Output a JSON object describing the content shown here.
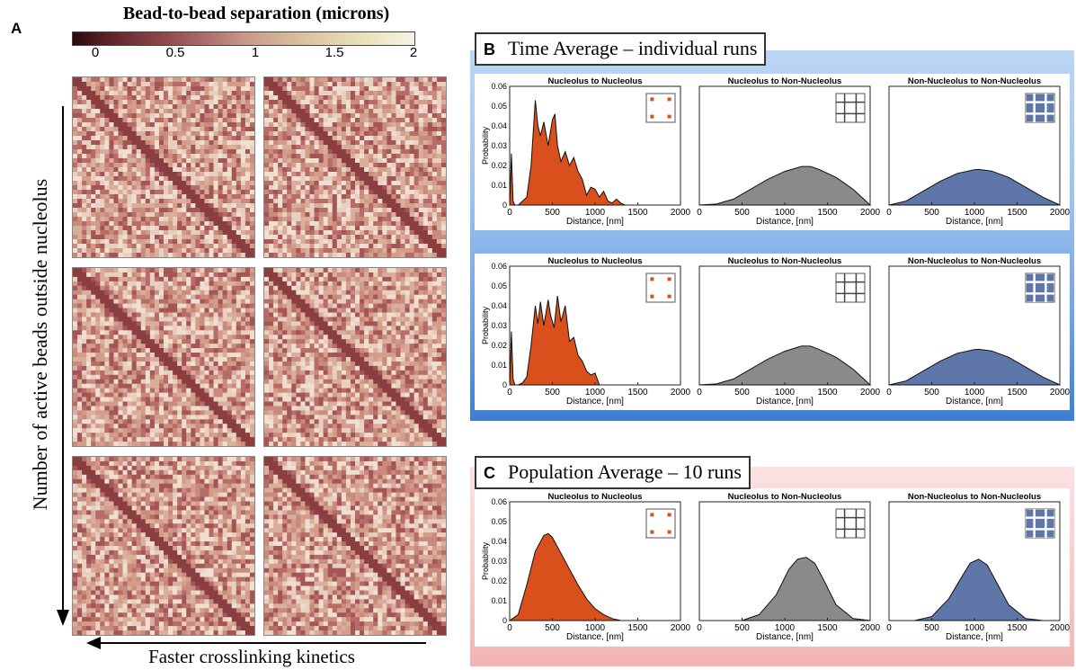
{
  "panel_a": {
    "letter": "A",
    "colorbar": {
      "title": "Bead-to-bead separation (microns)",
      "ticks": [
        "0",
        "0.5",
        "1",
        "1.5",
        "2"
      ]
    },
    "vertical_label": "Number of active beads outside nucleolus",
    "horizontal_label": "Faster crosslinking kinetics"
  },
  "panel_b": {
    "letter": "B",
    "title": "Time Average – individual runs"
  },
  "panel_c": {
    "letter": "C",
    "title": "Population Average – 10 runs"
  },
  "plot_titles": [
    "Nucleolus to Nucleolus",
    "Nucleolus to Non-Nucleolus",
    "Non-Nucleolus to Non-Nucleolus"
  ],
  "axis": {
    "xlabel": "Distance, [nm]",
    "ylabel": "Probability",
    "xticks": [
      "0",
      "500",
      "1000",
      "1500",
      "2000"
    ],
    "yticks": [
      "0",
      "0.01",
      "0.02",
      "0.03",
      "0.04",
      "0.05",
      "0.06"
    ]
  },
  "colors": {
    "orange": "#d9501c",
    "gray": "#8a8a8a",
    "blue": "#5e76a8",
    "panel_b_frame": "#3d7fd0",
    "panel_c_frame": "#f2b4b4"
  },
  "chart_data": [
    {
      "type": "area",
      "panel": "B",
      "row": 1,
      "title": "Nucleolus to Nucleolus",
      "xlabel": "Distance, [nm]",
      "ylabel": "Probability",
      "xlim": [
        0,
        2000
      ],
      "ylim": [
        0,
        0.06
      ],
      "x": [
        0,
        20,
        40,
        60,
        80,
        100,
        150,
        200,
        250,
        300,
        330,
        360,
        400,
        450,
        500,
        530,
        560,
        600,
        650,
        700,
        750,
        800,
        850,
        900,
        950,
        1000,
        1050,
        1100,
        1150,
        1200,
        1250,
        1300,
        1350
      ],
      "y": [
        0,
        0.026,
        0.002,
        0,
        0,
        0,
        0.002,
        0.004,
        0.02,
        0.053,
        0.04,
        0.035,
        0.042,
        0.03,
        0.043,
        0.046,
        0.03,
        0.022,
        0.027,
        0.02,
        0.024,
        0.017,
        0.013,
        0.005,
        0.009,
        0.008,
        0.004,
        0.007,
        0.002,
        0.001,
        0.003,
        0.001,
        0
      ]
    },
    {
      "type": "area",
      "panel": "B",
      "row": 1,
      "title": "Nucleolus to Non-Nucleolus",
      "xlabel": "Distance, [nm]",
      "xlim": [
        0,
        2000
      ],
      "ylim": [
        0,
        0.06
      ],
      "x": [
        0,
        200,
        400,
        600,
        800,
        1000,
        1200,
        1300,
        1400,
        1600,
        1800,
        1950,
        2000
      ],
      "y": [
        0,
        0.0005,
        0.003,
        0.008,
        0.013,
        0.017,
        0.0195,
        0.0195,
        0.018,
        0.014,
        0.008,
        0.002,
        0
      ]
    },
    {
      "type": "area",
      "panel": "B",
      "row": 1,
      "title": "Non-Nucleolus to Non-Nucleolus",
      "xlabel": "Distance, [nm]",
      "xlim": [
        0,
        2000
      ],
      "ylim": [
        0,
        0.06
      ],
      "x": [
        0,
        200,
        400,
        600,
        800,
        1000,
        1050,
        1200,
        1400,
        1600,
        1800,
        2000
      ],
      "y": [
        0,
        0.002,
        0.007,
        0.012,
        0.016,
        0.0178,
        0.018,
        0.0172,
        0.014,
        0.009,
        0.004,
        0
      ]
    },
    {
      "type": "area",
      "panel": "B",
      "row": 2,
      "title": "Nucleolus to Nucleolus",
      "xlabel": "Distance, [nm]",
      "ylabel": "Probability",
      "xlim": [
        0,
        2000
      ],
      "ylim": [
        0,
        0.06
      ],
      "x": [
        0,
        20,
        40,
        60,
        80,
        100,
        150,
        200,
        250,
        300,
        330,
        360,
        400,
        450,
        480,
        520,
        560,
        600,
        650,
        700,
        750,
        800,
        850,
        900,
        950,
        1000,
        1050
      ],
      "y": [
        0,
        0.027,
        0.003,
        0,
        0,
        0,
        0.001,
        0.004,
        0.02,
        0.04,
        0.031,
        0.042,
        0.03,
        0.043,
        0.035,
        0.029,
        0.045,
        0.032,
        0.04,
        0.022,
        0.024,
        0.015,
        0.012,
        0.007,
        0.005,
        0.006,
        0
      ]
    },
    {
      "type": "area",
      "panel": "B",
      "row": 2,
      "title": "Nucleolus to Non-Nucleolus",
      "xlabel": "Distance, [nm]",
      "xlim": [
        0,
        2000
      ],
      "ylim": [
        0,
        0.06
      ],
      "x": [
        0,
        200,
        400,
        600,
        800,
        1000,
        1200,
        1300,
        1400,
        1600,
        1800,
        1950,
        2000
      ],
      "y": [
        0,
        0.0005,
        0.003,
        0.008,
        0.013,
        0.017,
        0.0197,
        0.0196,
        0.018,
        0.014,
        0.008,
        0.002,
        0
      ]
    },
    {
      "type": "area",
      "panel": "B",
      "row": 2,
      "title": "Non-Nucleolus to Non-Nucleolus",
      "xlabel": "Distance, [nm]",
      "xlim": [
        0,
        2000
      ],
      "ylim": [
        0,
        0.06
      ],
      "x": [
        0,
        200,
        400,
        600,
        800,
        1000,
        1050,
        1200,
        1400,
        1600,
        1800,
        2000
      ],
      "y": [
        0,
        0.002,
        0.007,
        0.012,
        0.016,
        0.0178,
        0.018,
        0.0172,
        0.014,
        0.009,
        0.004,
        0
      ]
    },
    {
      "type": "area",
      "panel": "C",
      "row": 1,
      "title": "Nucleolus to Nucleolus",
      "xlabel": "Distance, [nm]",
      "ylabel": "Probability",
      "xlim": [
        0,
        2000
      ],
      "ylim": [
        0,
        0.06
      ],
      "x": [
        0,
        100,
        200,
        300,
        400,
        450,
        500,
        600,
        700,
        800,
        900,
        1000,
        1100,
        1200,
        1300
      ],
      "y": [
        0,
        0.003,
        0.018,
        0.035,
        0.043,
        0.044,
        0.042,
        0.034,
        0.026,
        0.018,
        0.011,
        0.006,
        0.003,
        0.001,
        0
      ]
    },
    {
      "type": "area",
      "panel": "C",
      "row": 1,
      "title": "Nucleolus to Non-Nucleolus",
      "xlabel": "Distance, [nm]",
      "xlim": [
        0,
        2000
      ],
      "ylim": [
        0,
        0.06
      ],
      "x": [
        500,
        700,
        900,
        1050,
        1150,
        1250,
        1350,
        1450,
        1600,
        1800,
        2000
      ],
      "y": [
        0,
        0.003,
        0.013,
        0.026,
        0.031,
        0.032,
        0.029,
        0.021,
        0.008,
        0.001,
        0
      ]
    },
    {
      "type": "area",
      "panel": "C",
      "row": 1,
      "title": "Non-Nucleolus to Non-Nucleolus",
      "xlabel": "Distance, [nm]",
      "xlim": [
        0,
        2000
      ],
      "ylim": [
        0,
        0.06
      ],
      "x": [
        300,
        500,
        700,
        850,
        950,
        1050,
        1150,
        1250,
        1400,
        1600,
        1800
      ],
      "y": [
        0,
        0.002,
        0.011,
        0.022,
        0.029,
        0.031,
        0.028,
        0.02,
        0.008,
        0.001,
        0
      ]
    }
  ]
}
